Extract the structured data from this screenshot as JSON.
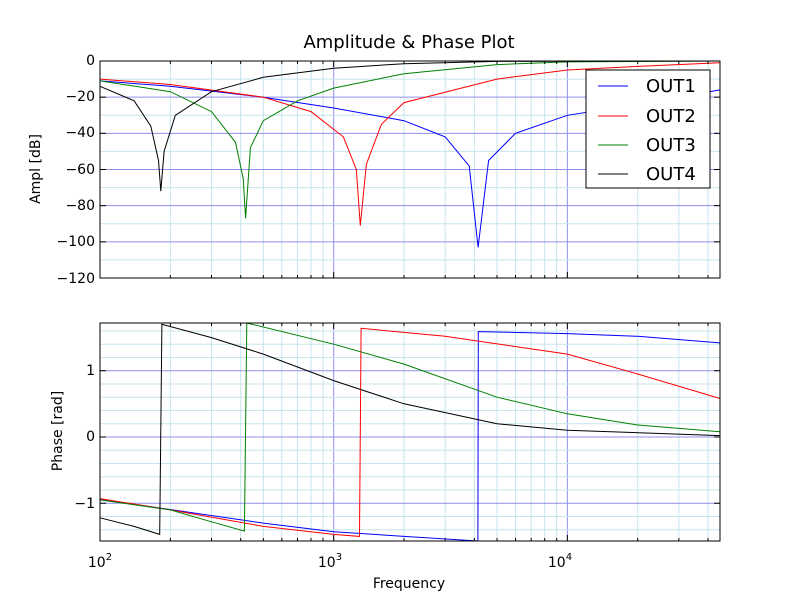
{
  "chart_data": [
    {
      "type": "line",
      "title": "Amplitude & Phase Plot",
      "xlabel": "",
      "ylabel": "Ampl [dB]",
      "xscale": "log",
      "xlim": [
        100,
        45000
      ],
      "ylim": [
        -120,
        0
      ],
      "yticks": [
        "0",
        "−20",
        "−40",
        "−60",
        "−80",
        "−100",
        "−120"
      ],
      "grid": true,
      "legend_position": "top-right",
      "series": [
        {
          "name": "OUT1",
          "color": "#0000ff",
          "notch": 4150,
          "notch_depth": -103,
          "x": [
            100,
            200,
            500,
            1000,
            2000,
            3000,
            3800,
            4150,
            4600,
            6000,
            10000,
            20000,
            45000
          ],
          "y": [
            -11,
            -14,
            -20,
            -26,
            -33,
            -42,
            -58,
            -103,
            -55,
            -40,
            -30,
            -24,
            -16
          ]
        },
        {
          "name": "OUT2",
          "color": "#ff0000",
          "notch": 1300,
          "notch_depth": -91,
          "x": [
            100,
            200,
            500,
            800,
            1100,
            1250,
            1300,
            1380,
            1600,
            2000,
            5000,
            10000,
            20000,
            45000
          ],
          "y": [
            -10,
            -13,
            -20,
            -28,
            -42,
            -60,
            -91,
            -57,
            -35,
            -23,
            -10,
            -5,
            -3,
            -1
          ]
        },
        {
          "name": "OUT3",
          "color": "#008000",
          "notch": 420,
          "notch_depth": -87,
          "x": [
            100,
            200,
            300,
            380,
            410,
            420,
            440,
            500,
            700,
            1000,
            2000,
            5000,
            10000,
            45000
          ],
          "y": [
            -11,
            -17,
            -28,
            -45,
            -65,
            -87,
            -48,
            -33,
            -22,
            -15,
            -7,
            -2,
            -0.5,
            0
          ]
        },
        {
          "name": "OUT4",
          "color": "#000000",
          "notch": 182,
          "notch_depth": -72,
          "x": [
            100,
            140,
            165,
            178,
            182,
            188,
            210,
            300,
            500,
            1000,
            2000,
            5000,
            45000
          ],
          "y": [
            -14,
            -22,
            -36,
            -55,
            -72,
            -50,
            -30,
            -17,
            -9,
            -4,
            -1.5,
            -0.2,
            0
          ]
        }
      ]
    },
    {
      "type": "line",
      "title": "",
      "xlabel": "Frequency",
      "ylabel": "Phase [rad]",
      "xscale": "log",
      "xlim": [
        100,
        45000
      ],
      "ylim": [
        -1.57,
        1.72
      ],
      "xticks": [
        {
          "base": "10",
          "exp": "2"
        },
        {
          "base": "10",
          "exp": "3"
        },
        {
          "base": "10",
          "exp": "4"
        }
      ],
      "yticks": [
        "1",
        "0",
        "−1"
      ],
      "grid": true,
      "series": [
        {
          "name": "OUT1",
          "color": "#0000ff",
          "jump_at": 4150,
          "x": [
            100,
            500,
            1000,
            2000,
            4140,
            4160,
            10000,
            20000,
            45000
          ],
          "y": [
            -0.94,
            -1.3,
            -1.43,
            -1.5,
            -1.57,
            1.59,
            1.56,
            1.52,
            1.42
          ]
        },
        {
          "name": "OUT2",
          "color": "#ff0000",
          "jump_at": 1300,
          "x": [
            100,
            200,
            500,
            1000,
            1290,
            1310,
            3000,
            10000,
            20000,
            45000
          ],
          "y": [
            -0.93,
            -1.1,
            -1.35,
            -1.47,
            -1.5,
            1.64,
            1.52,
            1.25,
            0.95,
            0.58
          ]
        },
        {
          "name": "OUT3",
          "color": "#008000",
          "jump_at": 420,
          "x": [
            100,
            200,
            300,
            415,
            425,
            1000,
            2000,
            5000,
            10000,
            20000,
            45000
          ],
          "y": [
            -0.95,
            -1.1,
            -1.28,
            -1.42,
            1.72,
            1.4,
            1.1,
            0.6,
            0.35,
            0.18,
            0.08
          ]
        },
        {
          "name": "OUT4",
          "color": "#000000",
          "jump_at": 182,
          "x": [
            100,
            140,
            180,
            184,
            300,
            500,
            1000,
            2000,
            5000,
            10000,
            45000
          ],
          "y": [
            -1.22,
            -1.35,
            -1.47,
            1.7,
            1.5,
            1.25,
            0.85,
            0.5,
            0.2,
            0.1,
            0.02
          ]
        }
      ]
    }
  ]
}
